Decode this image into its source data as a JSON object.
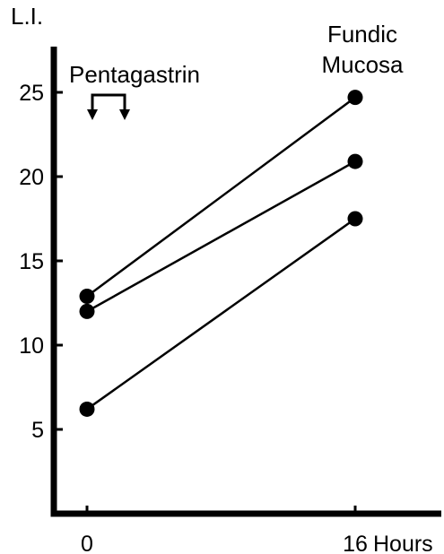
{
  "chart_data": {
    "type": "line",
    "title": "Fundic Mucosa",
    "title_lines": [
      "Fundic",
      "Mucosa"
    ],
    "ylabel": "L.I.",
    "xlabel": "Hours",
    "annotation": "Pentagastrin",
    "x_ticks": [
      0,
      16
    ],
    "x_tick_labels": [
      "0",
      "16"
    ],
    "y_ticks": [
      5,
      10,
      15,
      20,
      25
    ],
    "ylim": [
      0,
      27.5
    ],
    "xlim": [
      -2,
      21
    ],
    "grid": false,
    "series": [
      {
        "x": [
          0,
          16
        ],
        "values": [
          12.9,
          24.7
        ]
      },
      {
        "x": [
          0,
          16
        ],
        "values": [
          12.0,
          20.9
        ]
      },
      {
        "x": [
          0,
          16
        ],
        "values": [
          6.2,
          17.5
        ]
      }
    ],
    "colors": {
      "ink": "#000000",
      "background": "#ffffff"
    }
  }
}
